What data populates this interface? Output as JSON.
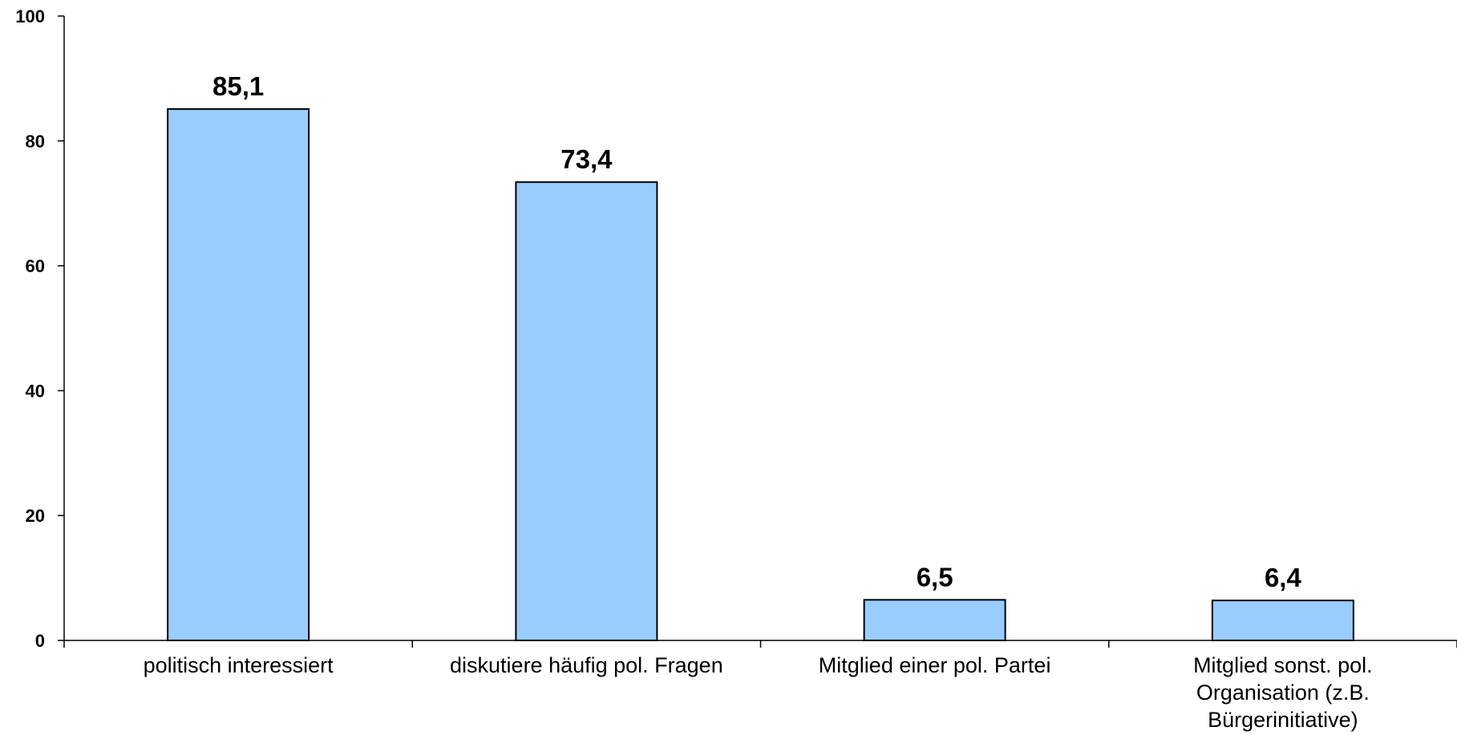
{
  "chart_data": {
    "type": "bar",
    "categories": [
      "politisch interessiert",
      "diskutiere häufig pol. Fragen",
      "Mitglied einer pol. Partei",
      "Mitglied sonst. pol.\nOrganisation (z.B.\nBürgerinitiative)"
    ],
    "values": [
      85.1,
      73.4,
      6.5,
      6.4
    ],
    "value_labels": [
      "85,1",
      "73,4",
      "6,5",
      "6,4"
    ],
    "yticks": [
      0,
      20,
      40,
      60,
      80,
      100
    ],
    "ytick_labels": [
      "0",
      "20",
      "40",
      "60",
      "80",
      "100"
    ],
    "ylim": [
      0,
      100
    ],
    "title": "",
    "xlabel": "",
    "ylabel": "",
    "grid": false,
    "legend": "none",
    "bar_color": "#99ccff",
    "bar_border_color": "#000000"
  }
}
